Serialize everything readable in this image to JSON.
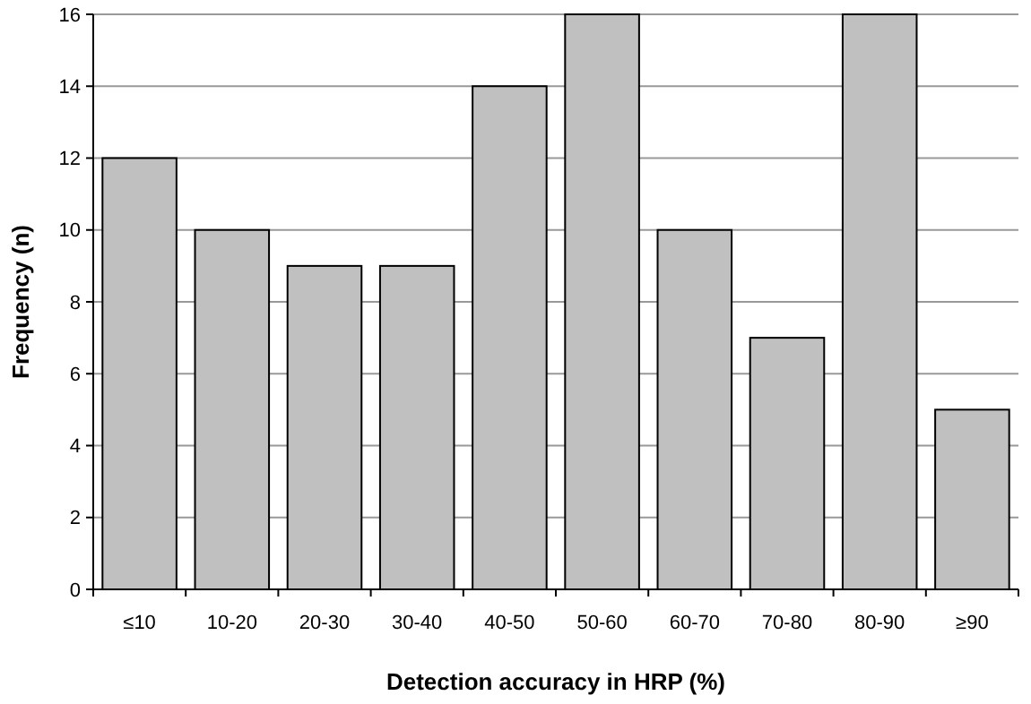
{
  "chart_data": {
    "type": "bar",
    "xlabel": "Detection accuracy in HRP (%)",
    "ylabel": "Frequency (n)",
    "categories": [
      "≤10",
      "10-20",
      "20-30",
      "30-40",
      "40-50",
      "50-60",
      "60-70",
      "70-80",
      "80-90",
      "≥90"
    ],
    "values": [
      12,
      10,
      9,
      9,
      14,
      16,
      10,
      7,
      16,
      5
    ],
    "color": "#c0c0c0",
    "ylim": [
      0,
      16
    ],
    "yticks": [
      0,
      2,
      4,
      6,
      8,
      10,
      12,
      14,
      16
    ],
    "grid": "y"
  }
}
